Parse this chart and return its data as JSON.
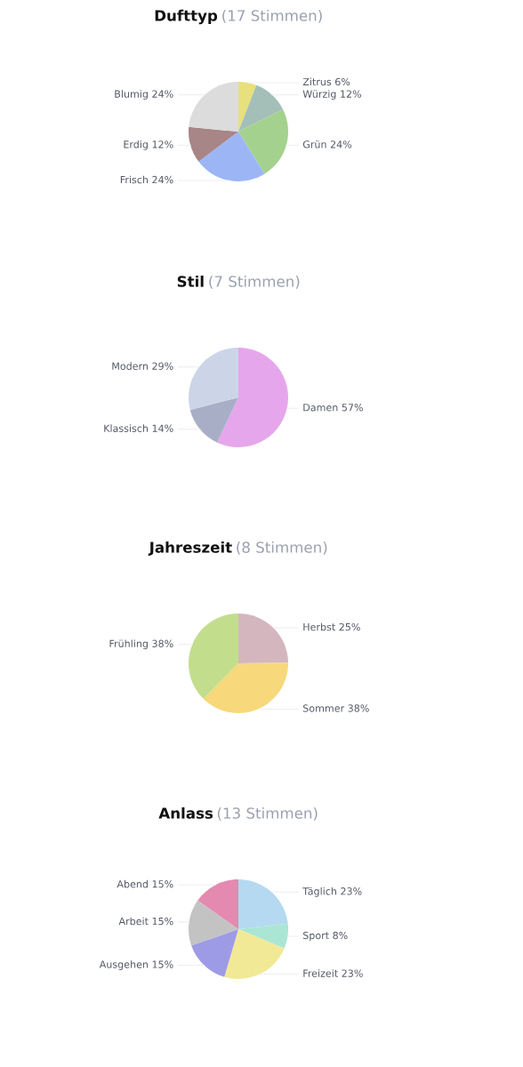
{
  "chart_data": [
    {
      "type": "pie",
      "title": "Dufttyp",
      "subtitle": "(17 Stimmen)",
      "categories": [
        "Zitrus",
        "Würzig",
        "Grün",
        "Frisch",
        "Erdig",
        "Blumig"
      ],
      "values": [
        6,
        12,
        24,
        24,
        12,
        24
      ],
      "value_labels": [
        "6%",
        "12%",
        "24%",
        "24%",
        "12%",
        "24%"
      ],
      "colors": [
        "#e8e07c",
        "#a3bfb8",
        "#a4d18d",
        "#9cb6f5",
        "#a88587",
        "#dcdcdc"
      ],
      "legend": false
    },
    {
      "type": "pie",
      "title": "Stil",
      "subtitle": "(7 Stimmen)",
      "categories": [
        "Damen",
        "Klassisch",
        "Modern"
      ],
      "values": [
        57,
        14,
        29
      ],
      "value_labels": [
        "57%",
        "14%",
        "29%"
      ],
      "colors": [
        "#e6a6ec",
        "#a9aec7",
        "#ccd5e8"
      ],
      "legend": false
    },
    {
      "type": "pie",
      "title": "Jahreszeit",
      "subtitle": "(8 Stimmen)",
      "categories": [
        "Herbst",
        "Sommer",
        "Frühling"
      ],
      "values": [
        25,
        38,
        38
      ],
      "value_labels": [
        "25%",
        "38%",
        "38%"
      ],
      "colors": [
        "#d4b6bf",
        "#f7d87b",
        "#c2de8d"
      ],
      "legend": false
    },
    {
      "type": "pie",
      "title": "Anlass",
      "subtitle": "(13 Stimmen)",
      "categories": [
        "Täglich",
        "Sport",
        "Freizeit",
        "Ausgehen",
        "Arbeit",
        "Abend"
      ],
      "values": [
        23,
        8,
        23,
        15,
        15,
        15
      ],
      "value_labels": [
        "23%",
        "8%",
        "23%",
        "15%",
        "15%",
        "15%"
      ],
      "colors": [
        "#b4d9f1",
        "#aae6d3",
        "#f2e997",
        "#9e9be6",
        "#c3c3c3",
        "#e489af"
      ],
      "legend": false
    }
  ]
}
